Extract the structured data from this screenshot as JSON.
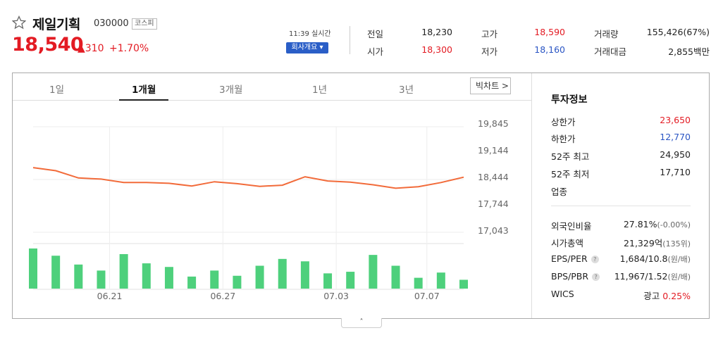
{
  "stock": {
    "name": "제일기획",
    "code": "030000",
    "market": "코스피",
    "price": "18,540",
    "change": "▲310",
    "change_pct": "+1.70%",
    "time": "11:39 실시간",
    "overview_button": "회사개요 ▾"
  },
  "quote": {
    "prev_close_label": "전일",
    "prev_close": "18,230",
    "open_label": "시가",
    "open": "18,300",
    "high_label": "고가",
    "high": "18,590",
    "low_label": "저가",
    "low": "18,160",
    "volume_label": "거래량",
    "volume": "155,426(67%)",
    "value_label": "거래대금",
    "value": "2,855백만"
  },
  "tabs": [
    "1일",
    "1개월",
    "3개월",
    "1년",
    "3년"
  ],
  "active_tab": "1개월",
  "bigchart_label": "빅차트 >",
  "chart_data": {
    "type": "line",
    "x_labels": [
      "06.21",
      "06.27",
      "07.03",
      "07.07"
    ],
    "y_ticks": [
      "19,845",
      "19,144",
      "18,444",
      "17,744",
      "17,043"
    ],
    "ylim": [
      17043,
      19845
    ],
    "price": [
      18700,
      18620,
      18430,
      18400,
      18310,
      18310,
      18290,
      18220,
      18330,
      18280,
      18210,
      18240,
      18460,
      18350,
      18320,
      18250,
      18160,
      18200,
      18310,
      18450
    ],
    "volume": [
      100,
      82,
      60,
      45,
      86,
      63,
      54,
      30,
      45,
      32,
      57,
      74,
      68,
      38,
      42,
      84,
      57,
      27,
      40,
      22
    ],
    "price_color": "#f26b3a",
    "volume_color": "#4ed07c"
  },
  "info": {
    "title": "투자정보",
    "upper_limit_label": "상한가",
    "upper_limit": "23,650",
    "lower_limit_label": "하한가",
    "lower_limit": "12,770",
    "high52_label": "52주 최고",
    "high52": "24,950",
    "low52_label": "52주 최저",
    "low52": "17,710",
    "sector_label": "업종",
    "foreign_label": "외국인비율",
    "foreign": "27.81%",
    "foreign_chg": "(-0.00%)",
    "mcap_label": "시가총액",
    "mcap": "21,329억",
    "mcap_rank": "(135위)",
    "eps_label": "EPS/PER",
    "eps": "1,684/10.8",
    "eps_unit": "(원/배)",
    "bps_label": "BPS/PBR",
    "bps": "11,967/1.52",
    "bps_unit": "(원/배)",
    "wics_label": "WICS",
    "wics_value": "광고",
    "wics_pct": "0.25%",
    "help": "?"
  },
  "footer_toggle": "˄"
}
